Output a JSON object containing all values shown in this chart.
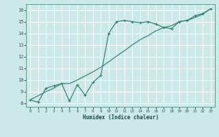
{
  "bg_color": "#cce8e8",
  "grid_color": "#ffffff",
  "line_color": "#2d7d6e",
  "xlabel": "Humidex (Indice chaleur)",
  "xlim": [
    -0.5,
    23.5
  ],
  "ylim": [
    7.7,
    16.5
  ],
  "yticks": [
    8,
    9,
    10,
    11,
    12,
    13,
    14,
    15,
    16
  ],
  "xticks": [
    0,
    1,
    2,
    3,
    4,
    5,
    6,
    7,
    8,
    9,
    10,
    11,
    12,
    13,
    14,
    15,
    16,
    17,
    18,
    19,
    20,
    21,
    22,
    23
  ],
  "zigzag_x": [
    0,
    1,
    2,
    3,
    4,
    5,
    6,
    7,
    8,
    9,
    10,
    11,
    12,
    13,
    14,
    15,
    16,
    17,
    18,
    19,
    20,
    21,
    22,
    23
  ],
  "zigzag_y": [
    8.3,
    8.1,
    9.3,
    9.5,
    9.7,
    8.2,
    9.6,
    8.7,
    9.8,
    10.4,
    14.0,
    15.0,
    15.1,
    15.0,
    14.9,
    15.0,
    14.8,
    14.5,
    14.4,
    15.0,
    15.1,
    15.5,
    15.7,
    16.1
  ],
  "diag_x": [
    0,
    2,
    3,
    4,
    5,
    6,
    7,
    8,
    9,
    10,
    11,
    12,
    13,
    14,
    15,
    16,
    17,
    18,
    19,
    20,
    21,
    22,
    23
  ],
  "diag_y": [
    8.3,
    9.0,
    9.3,
    9.7,
    9.7,
    10.0,
    10.35,
    10.7,
    11.1,
    11.55,
    12.05,
    12.5,
    13.0,
    13.45,
    13.8,
    14.2,
    14.5,
    14.65,
    15.0,
    15.1,
    15.35,
    15.65,
    16.1
  ]
}
